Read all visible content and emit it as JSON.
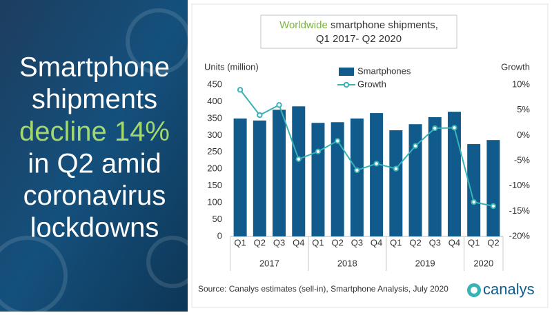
{
  "headline": [
    "Smartphone",
    "shipments",
    "decline 14%",
    "in Q2 amid",
    "coronavirus",
    "lockdowns"
  ],
  "chart_data": {
    "type": "bar-line",
    "title": [
      "Worldwide",
      "smartphone shipments,",
      "Q1 2017- Q2 2020"
    ],
    "y_label": "Units (million)",
    "y2_label": "Growth",
    "categories": [
      "Q1",
      "Q2",
      "Q3",
      "Q4",
      "Q1",
      "Q2",
      "Q3",
      "Q4",
      "Q1",
      "Q2",
      "Q3",
      "Q4",
      "Q1",
      "Q2"
    ],
    "groups": [
      "2017",
      "2018",
      "2019",
      "2020"
    ],
    "series": [
      {
        "name": "Smartphones",
        "type": "bar",
        "color": "#105b8c",
        "values": [
          350,
          344,
          376,
          386,
          337,
          339,
          350,
          366,
          315,
          333,
          354,
          370,
          274,
          286
        ]
      },
      {
        "name": "Growth",
        "type": "line",
        "axis": "y2",
        "color": "#37b3b6",
        "values": [
          9.0,
          4.0,
          6.0,
          -4.7,
          -3.2,
          -1.1,
          -6.9,
          -5.6,
          -6.6,
          -2.1,
          1.4,
          1.5,
          -13.2,
          -14.0
        ]
      }
    ],
    "ylim": [
      0,
      450
    ],
    "yticks": [
      0,
      50,
      100,
      150,
      200,
      250,
      300,
      350,
      400,
      450
    ],
    "y2lim": [
      -20,
      10
    ],
    "y2ticks": [
      {
        "value": 10,
        "label": "10%"
      },
      {
        "value": 5,
        "label": "5%"
      },
      {
        "value": 0,
        "label": "0%"
      },
      {
        "value": -5,
        "label": "-5%"
      },
      {
        "value": -10,
        "label": "-10%"
      },
      {
        "value": -15,
        "label": "-15%"
      },
      {
        "value": -20,
        "label": "-20%"
      }
    ],
    "source": "Source: Canalys estimates (sell-in), Smartphone Analysis, July 2020",
    "logo": "canalys"
  }
}
